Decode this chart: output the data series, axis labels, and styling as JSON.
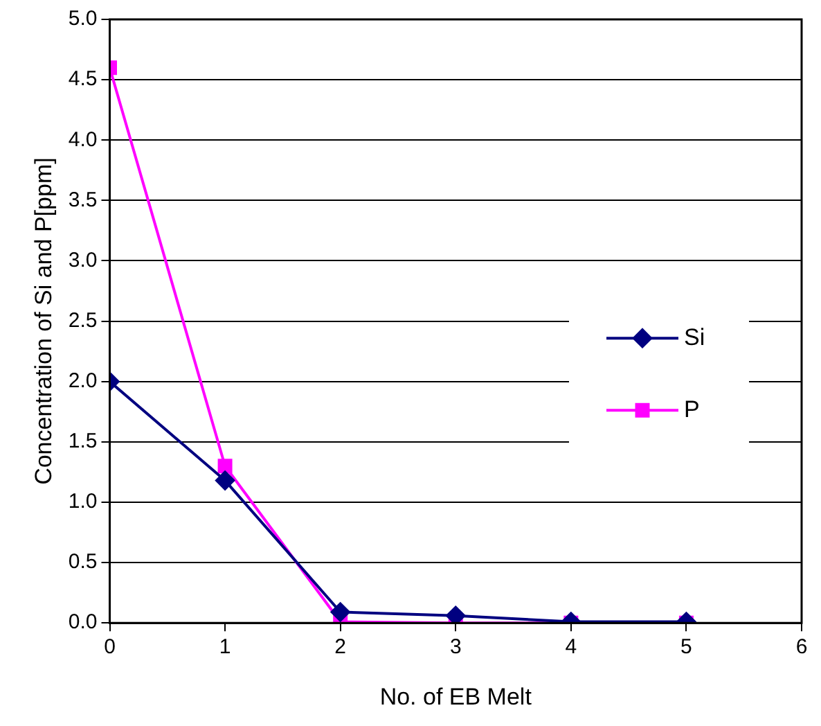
{
  "chart_data": {
    "type": "line",
    "xlabel": "No. of EB Melt",
    "ylabel": "Concentration of Si and P[ppm]",
    "x": [
      0,
      1,
      2,
      3,
      4,
      5
    ],
    "series": [
      {
        "name": "Si",
        "color": "#000080",
        "marker": "diamond",
        "values": [
          2.0,
          1.18,
          0.09,
          0.06,
          0.01,
          0.01
        ]
      },
      {
        "name": "P",
        "color": "#ff00ff",
        "marker": "square",
        "values": [
          4.6,
          1.3,
          0.01,
          0.0,
          0.0,
          0.0
        ]
      }
    ],
    "xlim": [
      0,
      6
    ],
    "xticks": [
      0,
      1,
      2,
      3,
      4,
      5,
      6
    ],
    "ylim": [
      0,
      5
    ],
    "yticks": [
      {
        "value": 0,
        "label": "0.0"
      },
      {
        "value": 0.5,
        "label": "0.5"
      },
      {
        "value": 1,
        "label": "1.0"
      },
      {
        "value": 1.5,
        "label": "1.5"
      },
      {
        "value": 2,
        "label": "2.0"
      },
      {
        "value": 2.5,
        "label": "2.5"
      },
      {
        "value": 3,
        "label": "3.0"
      },
      {
        "value": 3.5,
        "label": "3.5"
      },
      {
        "value": 4,
        "label": "4.0"
      },
      {
        "value": 4.5,
        "label": "4.5"
      },
      {
        "value": 5,
        "label": "5.0"
      }
    ],
    "grid": "y",
    "legend": "right",
    "line_style": "solid"
  }
}
